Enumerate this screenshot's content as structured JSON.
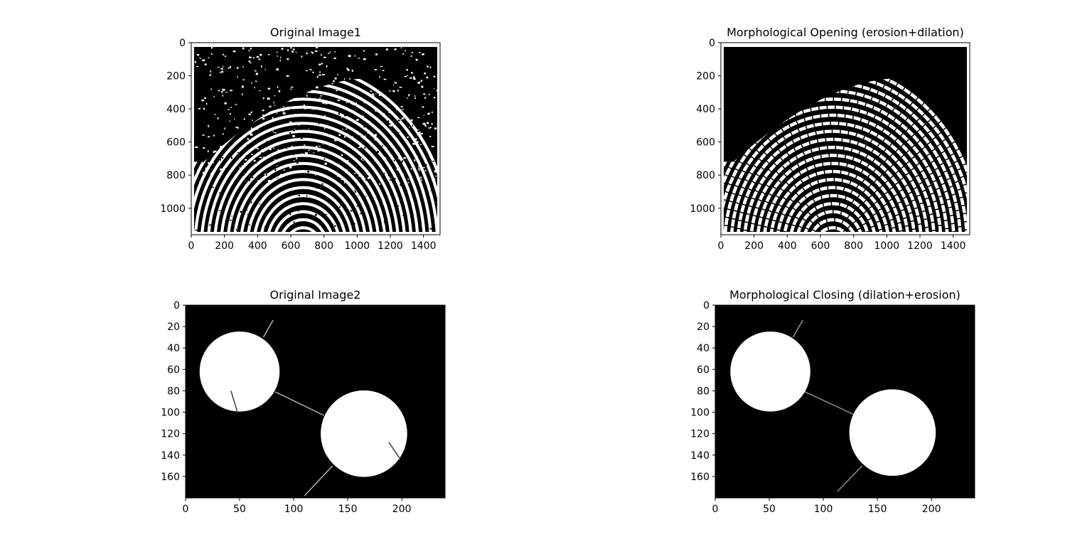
{
  "chart_data": [
    {
      "type": "image",
      "title": "Original Image1",
      "content": "binary fingerprint ridge pattern with salt noise",
      "xlim": [
        0,
        1500
      ],
      "ylim": [
        1160,
        0
      ],
      "x_ticks": [
        "0",
        "200",
        "400",
        "600",
        "800",
        "1000",
        "1200",
        "1400"
      ],
      "y_ticks": [
        "0",
        "200",
        "400",
        "600",
        "800",
        "1000"
      ],
      "x_tick_values": [
        0,
        200,
        400,
        600,
        800,
        1000,
        1200,
        1400
      ],
      "y_tick_values": [
        0,
        200,
        400,
        600,
        800,
        1000
      ],
      "colors": {
        "background": "#000000",
        "foreground": "#ffffff"
      }
    },
    {
      "type": "image",
      "title": "Morphological Opening (erosion+dilation)",
      "content": "binary fingerprint ridge pattern after opening, noise removed",
      "xlim": [
        0,
        1500
      ],
      "ylim": [
        1160,
        0
      ],
      "x_ticks": [
        "0",
        "200",
        "400",
        "600",
        "800",
        "1000",
        "1200",
        "1400"
      ],
      "y_ticks": [
        "0",
        "200",
        "400",
        "600",
        "800",
        "1000"
      ],
      "x_tick_values": [
        0,
        200,
        400,
        600,
        800,
        1000,
        1200,
        1400
      ],
      "y_tick_values": [
        0,
        200,
        400,
        600,
        800,
        1000
      ],
      "colors": {
        "background": "#000000",
        "foreground": "#ffffff"
      }
    },
    {
      "type": "image",
      "title": "Original Image2",
      "content": "two white circles joined by thin lines with small strokes",
      "xlim": [
        0,
        240
      ],
      "ylim": [
        180,
        0
      ],
      "x_ticks": [
        "0",
        "50",
        "100",
        "150",
        "200"
      ],
      "y_ticks": [
        "0",
        "20",
        "40",
        "60",
        "80",
        "100",
        "120",
        "140",
        "160"
      ],
      "x_tick_values": [
        0,
        50,
        100,
        150,
        200
      ],
      "y_tick_values": [
        0,
        20,
        40,
        60,
        80,
        100,
        120,
        140,
        160
      ],
      "circles": [
        {
          "cx": 50,
          "cy": 62,
          "r": 37
        },
        {
          "cx": 165,
          "cy": 120,
          "r": 40
        }
      ],
      "lines": [
        {
          "x1": 72,
          "y1": 30,
          "x2": 81,
          "y2": 14
        },
        {
          "x1": 83,
          "y1": 81,
          "x2": 128,
          "y2": 103
        },
        {
          "x1": 42,
          "y1": 80,
          "x2": 48,
          "y2": 100
        },
        {
          "x1": 136,
          "y1": 150,
          "x2": 110,
          "y2": 178
        },
        {
          "x1": 188,
          "y1": 128,
          "x2": 198,
          "y2": 144
        }
      ],
      "colors": {
        "background": "#000000",
        "foreground": "#ffffff",
        "lines": "#aaaaaa"
      }
    },
    {
      "type": "image",
      "title": "Morphological Closing (dilation+erosion)",
      "content": "two white circles after closing, thin lines mostly faded",
      "xlim": [
        0,
        240
      ],
      "ylim": [
        180,
        0
      ],
      "x_ticks": [
        "0",
        "50",
        "100",
        "150",
        "200"
      ],
      "y_ticks": [
        "0",
        "20",
        "40",
        "60",
        "80",
        "100",
        "120",
        "140",
        "160"
      ],
      "x_tick_values": [
        0,
        50,
        100,
        150,
        200
      ],
      "y_tick_values": [
        0,
        20,
        40,
        60,
        80,
        100,
        120,
        140,
        160
      ],
      "circles": [
        {
          "cx": 51,
          "cy": 62,
          "r": 37
        },
        {
          "cx": 164,
          "cy": 119,
          "r": 40
        }
      ],
      "lines": [
        {
          "x1": 72,
          "y1": 30,
          "x2": 81,
          "y2": 14
        },
        {
          "x1": 83,
          "y1": 81,
          "x2": 128,
          "y2": 102
        },
        {
          "x1": 136,
          "y1": 150,
          "x2": 113,
          "y2": 174
        }
      ],
      "colors": {
        "background": "#000000",
        "foreground": "#ffffff",
        "lines": "#888888"
      }
    }
  ]
}
